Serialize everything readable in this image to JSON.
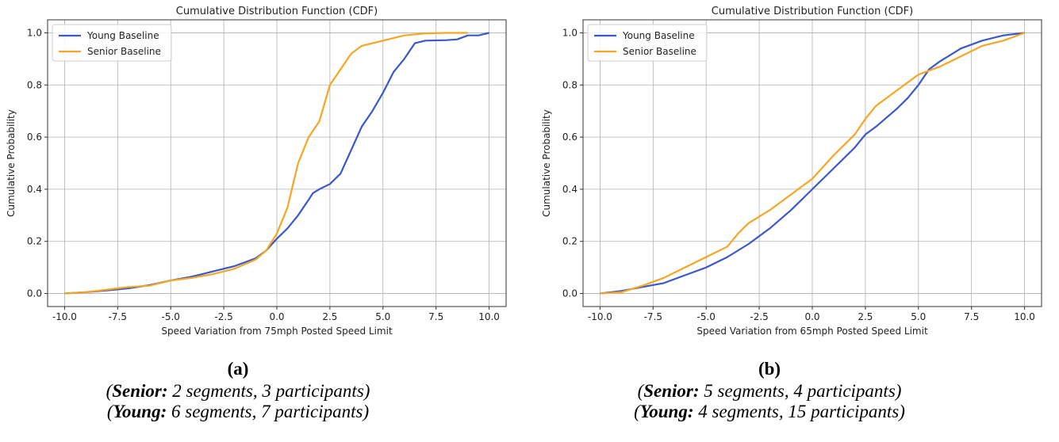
{
  "chart_data": [
    {
      "type": "line",
      "title": "Cumulative Distribution Function (CDF)",
      "xlabel": "Speed Variation from 75mph Posted Speed Limit",
      "ylabel": "Cumulative Probability",
      "xlim": [
        -10.8,
        10.8
      ],
      "ylim": [
        -0.05,
        1.05
      ],
      "xticks": [
        "-10.0",
        "-7.5",
        "-5.0",
        "-2.5",
        "0.0",
        "2.5",
        "5.0",
        "7.5",
        "10.0"
      ],
      "yticks": [
        "0.0",
        "0.2",
        "0.4",
        "0.6",
        "0.8",
        "1.0"
      ],
      "grid": true,
      "legend_position": "upper-left",
      "series": [
        {
          "name": "Young Baseline",
          "color": "#3a58c9",
          "x": [
            -10,
            -9,
            -8,
            -7,
            -6,
            -5,
            -4,
            -3,
            -2,
            -1,
            -0.5,
            0,
            0.5,
            1,
            1.5,
            1.7,
            2,
            2.5,
            3,
            3.5,
            4,
            4.5,
            5,
            5.5,
            6,
            6.5,
            7,
            8,
            8.5,
            9,
            9.5,
            10
          ],
          "y": [
            0,
            0.005,
            0.012,
            0.02,
            0.032,
            0.05,
            0.065,
            0.085,
            0.105,
            0.135,
            0.165,
            0.21,
            0.25,
            0.3,
            0.36,
            0.385,
            0.4,
            0.42,
            0.46,
            0.55,
            0.64,
            0.7,
            0.77,
            0.85,
            0.9,
            0.96,
            0.97,
            0.972,
            0.975,
            0.99,
            0.99,
            1.0
          ]
        },
        {
          "name": "Senior Baseline",
          "color": "#f5a623",
          "x": [
            -10,
            -9,
            -8,
            -7,
            -6,
            -5,
            -4,
            -3,
            -2,
            -1,
            -0.5,
            0,
            0.5,
            1,
            1.5,
            2,
            2.5,
            3,
            3.5,
            4,
            4.5,
            5,
            6,
            7,
            8,
            9
          ],
          "y": [
            0,
            0.005,
            0.015,
            0.025,
            0.03,
            0.05,
            0.06,
            0.075,
            0.095,
            0.13,
            0.165,
            0.23,
            0.33,
            0.5,
            0.6,
            0.66,
            0.8,
            0.86,
            0.92,
            0.95,
            0.96,
            0.97,
            0.99,
            0.998,
            1.0,
            1.0
          ]
        }
      ]
    },
    {
      "type": "line",
      "title": "Cumulative Distribution Function (CDF)",
      "xlabel": "Speed Variation from 65mph Posted Speed Limit",
      "ylabel": "Cumulative Probability",
      "xlim": [
        -10.8,
        10.8
      ],
      "ylim": [
        -0.05,
        1.05
      ],
      "xticks": [
        "-10.0",
        "-7.5",
        "-5.0",
        "-2.5",
        "0.0",
        "2.5",
        "5.0",
        "7.5",
        "10.0"
      ],
      "yticks": [
        "0.0",
        "0.2",
        "0.4",
        "0.6",
        "0.8",
        "1.0"
      ],
      "grid": true,
      "legend_position": "upper-left",
      "series": [
        {
          "name": "Young Baseline",
          "color": "#3a58c9",
          "x": [
            -10,
            -9,
            -8,
            -7,
            -6,
            -5,
            -4,
            -3,
            -2,
            -1,
            0,
            1,
            2,
            2.5,
            3,
            4,
            4.5,
            5,
            5.5,
            6,
            7,
            8,
            9,
            10
          ],
          "y": [
            0,
            0.01,
            0.025,
            0.04,
            0.07,
            0.1,
            0.14,
            0.19,
            0.25,
            0.32,
            0.4,
            0.48,
            0.56,
            0.61,
            0.64,
            0.71,
            0.75,
            0.8,
            0.86,
            0.89,
            0.94,
            0.97,
            0.99,
            1.0
          ]
        },
        {
          "name": "Senior Baseline",
          "color": "#f5a623",
          "x": [
            -10,
            -9,
            -8,
            -7,
            -6,
            -5,
            -4,
            -3.5,
            -3,
            -2,
            -1,
            0,
            1,
            2,
            2.5,
            3,
            4,
            5,
            6,
            7,
            8,
            9,
            10
          ],
          "y": [
            0,
            0.005,
            0.03,
            0.06,
            0.1,
            0.14,
            0.18,
            0.23,
            0.27,
            0.32,
            0.38,
            0.44,
            0.53,
            0.61,
            0.67,
            0.72,
            0.78,
            0.84,
            0.87,
            0.91,
            0.95,
            0.97,
            1.0
          ]
        }
      ]
    }
  ],
  "captions": [
    {
      "tag": "(a)",
      "line1": {
        "open": "(",
        "group": "Senior:",
        "rest": " 2 segments, 3 participants)"
      },
      "line2": {
        "open": "(",
        "group": "Young:",
        "rest": " 6 segments, 7 participants)"
      }
    },
    {
      "tag": "(b)",
      "line1": {
        "open": "(",
        "group": "Senior:",
        "rest": " 5 segments, 4 participants)"
      },
      "line2": {
        "open": "(",
        "group": "Young:",
        "rest": " 4 segments, 15 participants)"
      }
    }
  ]
}
